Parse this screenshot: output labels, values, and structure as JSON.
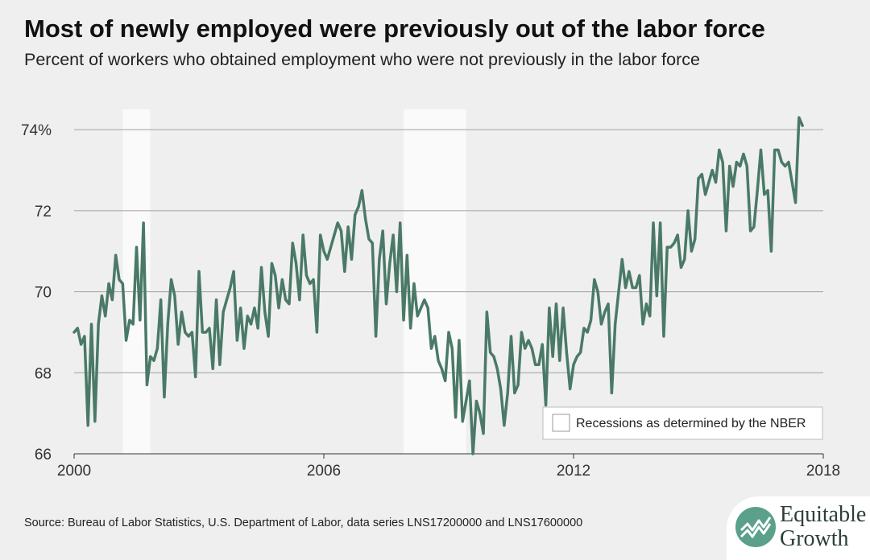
{
  "chart_data": {
    "type": "line",
    "title": "Most of newly employed were previously out of the labor force",
    "subtitle": "Percent of workers who obtained employment who were not previously in the labor force",
    "xlim": [
      2000,
      2018
    ],
    "ylim": [
      66,
      74.5
    ],
    "x_ticks": [
      2000,
      2006,
      2012,
      2018
    ],
    "x_tick_labels": [
      "2000",
      "2006",
      "2012",
      "2018"
    ],
    "y_ticks": [
      66,
      68,
      70,
      72,
      74
    ],
    "y_tick_labels": [
      "66",
      "68",
      "70",
      "72",
      "74%"
    ],
    "grid": true,
    "line_color": "#4a7a67",
    "recessions": [
      [
        2001.17,
        2001.83
      ],
      [
        2007.92,
        2009.42
      ]
    ],
    "legend": {
      "label": "Recessions as determined by the NBER",
      "placement": "bottom-right"
    },
    "series": [
      {
        "x_start": 2000.0,
        "x_step": 0.0833333,
        "values": [
          69.0,
          69.1,
          68.7,
          68.9,
          66.7,
          69.2,
          66.8,
          69.2,
          69.9,
          69.4,
          70.2,
          69.8,
          70.9,
          70.3,
          70.2,
          68.8,
          69.3,
          69.2,
          71.1,
          69.3,
          71.7,
          67.7,
          68.4,
          68.3,
          68.6,
          69.8,
          67.4,
          69.2,
          70.3,
          69.9,
          68.7,
          69.5,
          69.0,
          68.9,
          69.0,
          67.9,
          70.5,
          69.0,
          69.0,
          69.1,
          68.1,
          69.8,
          68.2,
          69.5,
          69.8,
          70.1,
          70.5,
          68.8,
          69.6,
          68.6,
          69.4,
          69.2,
          69.6,
          69.1,
          70.6,
          69.5,
          68.9,
          70.7,
          70.4,
          69.6,
          70.3,
          69.8,
          69.7,
          71.2,
          70.7,
          69.8,
          71.4,
          70.4,
          70.2,
          70.3,
          69.0,
          71.4,
          71.0,
          70.8,
          71.1,
          71.4,
          71.7,
          71.5,
          70.5,
          71.6,
          70.8,
          71.9,
          72.1,
          72.5,
          71.8,
          71.3,
          71.2,
          68.9,
          70.8,
          71.5,
          69.7,
          70.7,
          71.4,
          70.0,
          71.7,
          69.3,
          70.9,
          69.1,
          70.2,
          69.4,
          69.6,
          69.8,
          69.6,
          68.6,
          68.9,
          68.3,
          68.1,
          67.8,
          69.0,
          68.6,
          66.9,
          68.8,
          66.8,
          67.3,
          67.8,
          66.0,
          67.3,
          67.0,
          66.5,
          69.5,
          68.5,
          68.4,
          68.1,
          67.6,
          66.7,
          67.5,
          68.9,
          67.5,
          67.7,
          69.0,
          68.6,
          68.8,
          68.6,
          68.2,
          68.2,
          68.7,
          67.2,
          69.6,
          68.4,
          69.7,
          68.3,
          69.6,
          68.5,
          67.6,
          68.2,
          68.4,
          68.5,
          69.1,
          69.0,
          69.3,
          70.3,
          70.0,
          69.2,
          69.5,
          69.7,
          67.5,
          69.2,
          70.0,
          70.8,
          70.1,
          70.5,
          70.1,
          70.1,
          70.4,
          69.2,
          69.7,
          69.4,
          71.7,
          69.9,
          71.7,
          68.9,
          71.1,
          71.1,
          71.2,
          71.4,
          70.6,
          70.8,
          72.0,
          71.0,
          71.3,
          72.8,
          72.9,
          72.4,
          72.7,
          73.0,
          72.7,
          73.5,
          73.2,
          71.5,
          73.1,
          72.6,
          73.2,
          73.1,
          73.4,
          73.1,
          71.5,
          71.6,
          72.5,
          73.5,
          72.4,
          72.5,
          71.0,
          73.5,
          73.5,
          73.2,
          73.1,
          73.2,
          72.7,
          72.2,
          74.3,
          74.1
        ]
      }
    ]
  },
  "source": "Source: Bureau of Labor Statistics, U.S. Department of Labor, data series LNS17200000 and LNS17600000",
  "logo": {
    "line1": "Equitable",
    "line2": "Growth"
  }
}
